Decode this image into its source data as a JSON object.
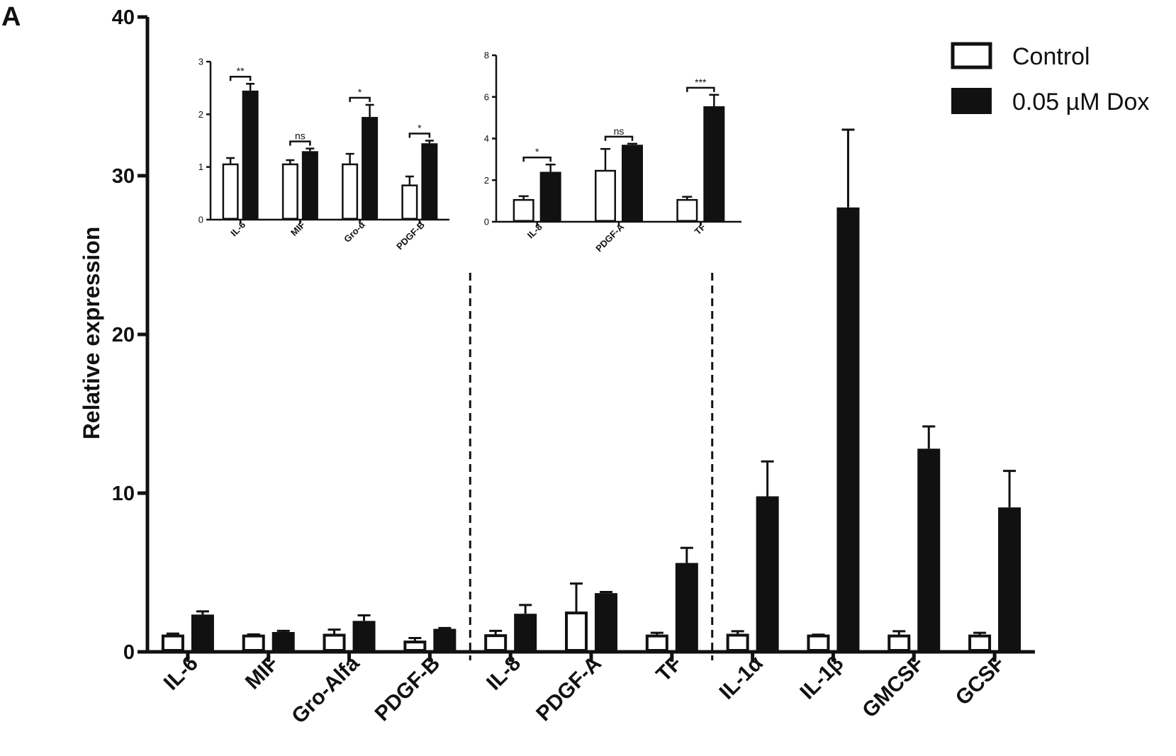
{
  "panel_label": "A",
  "colors": {
    "control": "#ffffff",
    "dox": "#111111",
    "stroke": "#111111"
  },
  "legend": {
    "control_label": "Control",
    "dox_label": "0.05 µM Dox"
  },
  "chart_data": [
    {
      "type": "bar",
      "role": "main",
      "ylabel": "Relative expression",
      "ylim": [
        0,
        40
      ],
      "yticks": [
        "0",
        "10",
        "20",
        "30",
        "40"
      ],
      "categories": [
        "IL-6",
        "MIF",
        "Gro-Alfa",
        "PDGF-B",
        "IL-8",
        "PDGF-A",
        "TF",
        "IL-1α",
        "IL-1β",
        "GMCSF",
        "GCSF"
      ],
      "group_separators_after": [
        3,
        6
      ],
      "series": [
        {
          "name": "Control",
          "values": [
            1.0,
            1.0,
            1.05,
            0.62,
            1.02,
            2.45,
            1.0,
            1.05,
            1.0,
            1.0,
            1.0
          ],
          "errors": [
            0.15,
            0.1,
            0.35,
            0.25,
            0.3,
            1.85,
            0.2,
            0.25,
            0.08,
            0.3,
            0.2
          ]
        },
        {
          "name": "0.05 µM Dox",
          "values": [
            2.35,
            1.25,
            1.95,
            1.45,
            2.4,
            3.7,
            5.6,
            9.8,
            28.0,
            12.8,
            9.1
          ],
          "errors": [
            0.2,
            0.07,
            0.35,
            0.05,
            0.55,
            0.07,
            0.95,
            2.2,
            4.9,
            1.4,
            2.3
          ]
        }
      ]
    },
    {
      "type": "bar",
      "role": "inset",
      "ylim": [
        0,
        3
      ],
      "yticks": [
        "0",
        "1",
        "2",
        "3"
      ],
      "categories": [
        "IL-6",
        "MIF",
        "Gro-α",
        "PDGF-B"
      ],
      "significance": [
        "**",
        "ns",
        "*",
        "*"
      ],
      "series": [
        {
          "name": "Control",
          "values": [
            1.05,
            1.05,
            1.05,
            0.65
          ],
          "errors": [
            0.12,
            0.08,
            0.2,
            0.17
          ]
        },
        {
          "name": "0.05 µM Dox",
          "values": [
            2.45,
            1.3,
            1.95,
            1.45
          ],
          "errors": [
            0.13,
            0.05,
            0.23,
            0.05
          ]
        }
      ]
    },
    {
      "type": "bar",
      "role": "inset",
      "ylim": [
        0,
        8
      ],
      "yticks": [
        "0",
        "2",
        "4",
        "6",
        "8"
      ],
      "categories": [
        "IL-8",
        "PDGF-A",
        "TF"
      ],
      "significance": [
        "*",
        "ns",
        "***"
      ],
      "series": [
        {
          "name": "Control",
          "values": [
            1.05,
            2.45,
            1.05
          ],
          "errors": [
            0.18,
            1.05,
            0.15
          ]
        },
        {
          "name": "0.05 µM Dox",
          "values": [
            2.4,
            3.7,
            5.55
          ],
          "errors": [
            0.35,
            0.05,
            0.55
          ]
        }
      ]
    }
  ]
}
